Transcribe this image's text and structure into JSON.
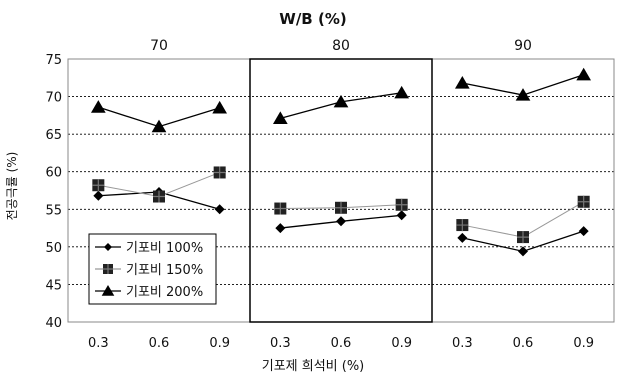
{
  "chart_data": {
    "type": "line",
    "title": "W/B (%)",
    "xlabel": "기포제 희석비 (%)",
    "ylabel": "전공극률 (%)",
    "ylim": [
      40,
      75
    ],
    "yticks": [
      40,
      45,
      50,
      55,
      60,
      65,
      70,
      75
    ],
    "grid": true,
    "legend_position": "lower-left",
    "groups": [
      {
        "label": "70",
        "x": [
          "0.3",
          "0.6",
          "0.9"
        ],
        "series": [
          {
            "name": "기포비 100%",
            "marker": "diamond",
            "values": [
              56.8,
              57.3,
              55.0
            ]
          },
          {
            "name": "기포비 150%",
            "marker": "square",
            "values": [
              58.2,
              56.7,
              59.9
            ]
          },
          {
            "name": "기포비 200%",
            "marker": "triangle",
            "values": [
              68.6,
              66.0,
              68.5
            ]
          }
        ]
      },
      {
        "label": "80",
        "x": [
          "0.3",
          "0.6",
          "0.9"
        ],
        "series": [
          {
            "name": "기포비 100%",
            "marker": "diamond",
            "values": [
              52.5,
              53.4,
              54.2
            ]
          },
          {
            "name": "기포비 150%",
            "marker": "square",
            "values": [
              55.1,
              55.2,
              55.6
            ]
          },
          {
            "name": "기포비 200%",
            "marker": "triangle",
            "values": [
              67.1,
              69.3,
              70.5
            ]
          }
        ]
      },
      {
        "label": "90",
        "x": [
          "0.3",
          "0.6",
          "0.9"
        ],
        "series": [
          {
            "name": "기포비 100%",
            "marker": "diamond",
            "values": [
              51.2,
              49.4,
              52.1
            ]
          },
          {
            "name": "기포비 150%",
            "marker": "square",
            "values": [
              52.9,
              51.3,
              56.0
            ]
          },
          {
            "name": "기포비 200%",
            "marker": "triangle",
            "values": [
              71.8,
              70.2,
              72.9
            ]
          }
        ]
      }
    ],
    "highlighted_group": "80",
    "colors": {
      "line_100": "#000000",
      "line_150": "#999999",
      "line_200": "#000000",
      "grid": "#000000",
      "box": "#000000"
    }
  }
}
